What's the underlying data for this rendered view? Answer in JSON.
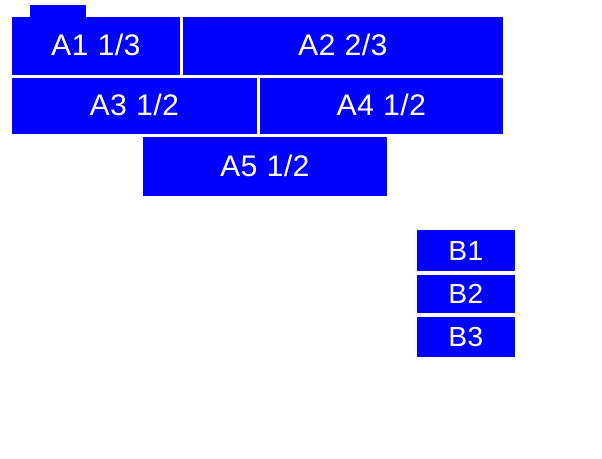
{
  "colors": {
    "box_fill": "#0000ff",
    "box_text": "#ffffff",
    "background": "#ffffff"
  },
  "group_a": {
    "a1": {
      "label": "A1 1/3"
    },
    "a2": {
      "label": "A2 2/3"
    },
    "a3": {
      "label": "A3 1/2"
    },
    "a4": {
      "label": "A4 1/2"
    },
    "a5": {
      "label": "A5 1/2"
    }
  },
  "group_b": {
    "b1": {
      "label": "B1"
    },
    "b2": {
      "label": "B2"
    },
    "b3": {
      "label": "B3"
    }
  }
}
